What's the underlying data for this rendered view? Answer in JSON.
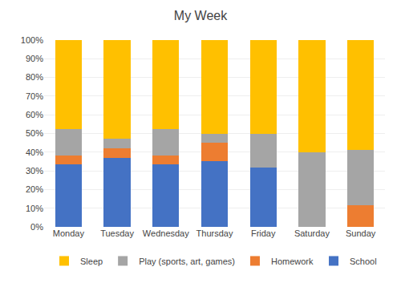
{
  "chart_data": {
    "type": "bar",
    "stacked": true,
    "title": "My Week",
    "categories": [
      "Monday",
      "Tuesday",
      "Wednesday",
      "Thursday",
      "Friday",
      "Saturday",
      "Sunday"
    ],
    "series": [
      {
        "name": "School",
        "color": "#4472C4",
        "values": [
          0.3333333333333333,
          0.3684210526315789,
          0.3333333333333333,
          0.35,
          0.3181818181818182,
          0,
          0
        ]
      },
      {
        "name": "Homework",
        "color": "#ED7D31",
        "values": [
          0.047619047619047616,
          0.05263157894736842,
          0.047619047619047616,
          0.1,
          0,
          0,
          0.11764705882352941
        ]
      },
      {
        "name": "Play (sports, art, games)",
        "color": "#A5A5A5",
        "values": [
          0.14285714285714285,
          0.05263157894736842,
          0.14285714285714285,
          0.05,
          0.18181818181818182,
          0.4,
          0.29411764705882354
        ]
      },
      {
        "name": "Sleep",
        "color": "#FFC000",
        "values": [
          0.47619047619047616,
          0.5263157894736842,
          0.47619047619047616,
          0.5,
          0.5,
          0.6,
          0.5882352941176471
        ]
      }
    ],
    "ylim": [
      0,
      1
    ],
    "yticks": [
      {
        "value": 0,
        "label": "0%"
      },
      {
        "value": 0.1,
        "label": "10%"
      },
      {
        "value": 0.2,
        "label": "20%"
      },
      {
        "value": 0.3,
        "label": "30%"
      },
      {
        "value": 0.4,
        "label": "40%"
      },
      {
        "value": 0.5,
        "label": "50%"
      },
      {
        "value": 0.6,
        "label": "60%"
      },
      {
        "value": 0.7,
        "label": "70%"
      },
      {
        "value": 0.8,
        "label": "80%"
      },
      {
        "value": 0.9,
        "label": "90%"
      },
      {
        "value": 1,
        "label": "100%"
      }
    ],
    "grid": true,
    "legend": "bottom"
  }
}
